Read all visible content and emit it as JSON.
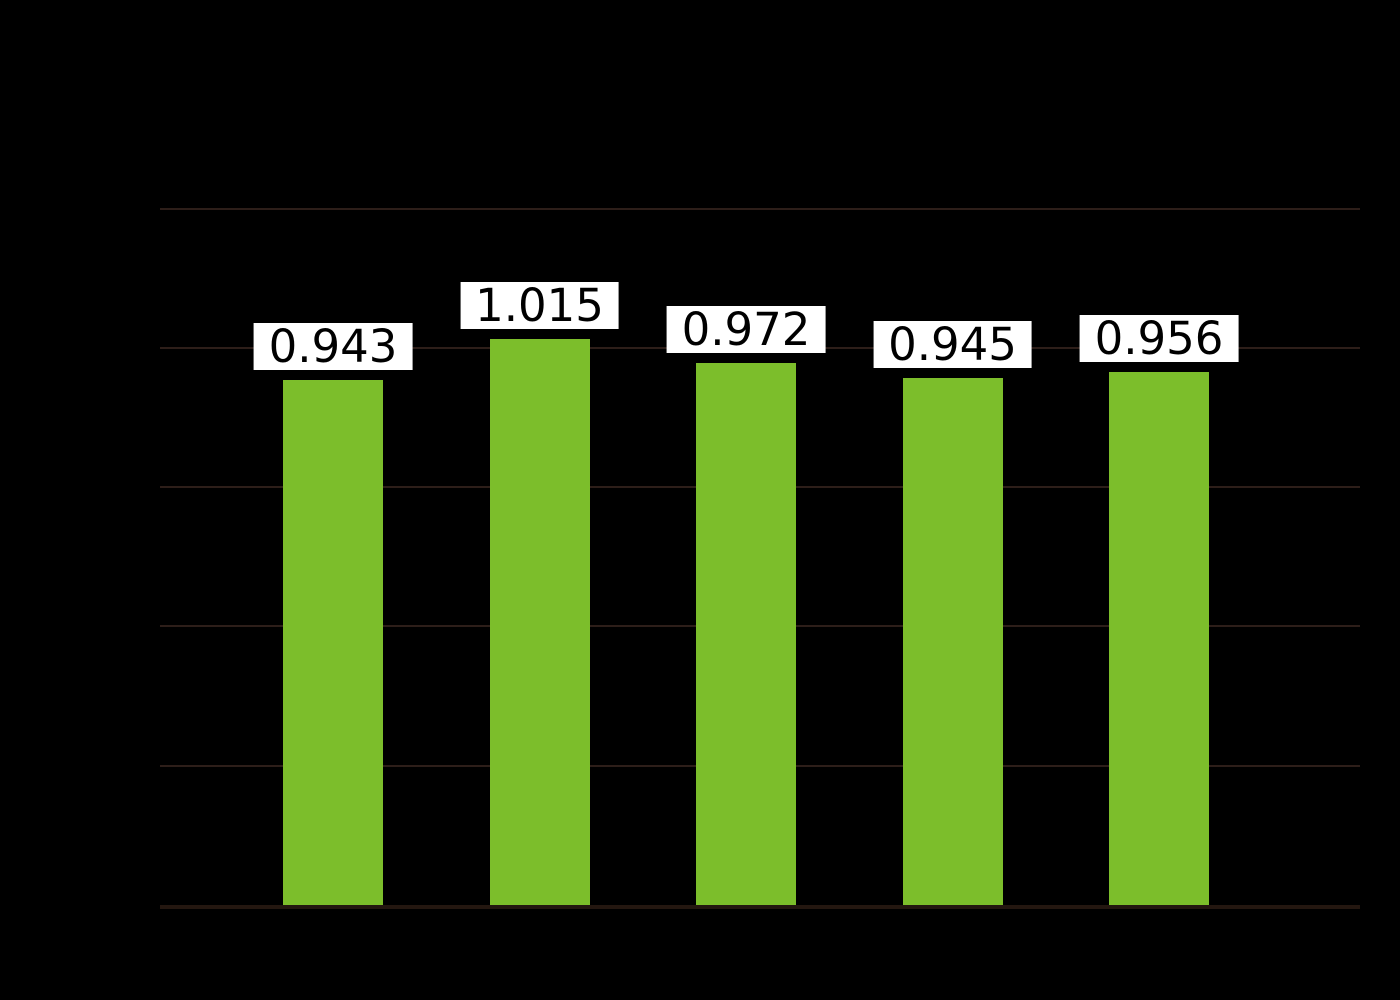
{
  "chart_data": {
    "type": "bar",
    "values": [
      0.943,
      1.015,
      0.972,
      0.945,
      0.956
    ],
    "bar_labels": [
      "0.943",
      "1.015",
      "0.972",
      "0.945",
      "0.956"
    ],
    "title": "",
    "xlabel": "",
    "ylabel": "",
    "ylim": [
      0,
      1.25
    ],
    "ytick_step": 0.25,
    "grid": "horizontal",
    "legend_position": "none",
    "tick_labels_visible": false
  },
  "colors": {
    "background": "#000000",
    "bar": "#7cbe2b",
    "grid": "#2d1e19",
    "axis": "#241710",
    "label_bg": "#ffffff",
    "label_text": "#000000"
  }
}
